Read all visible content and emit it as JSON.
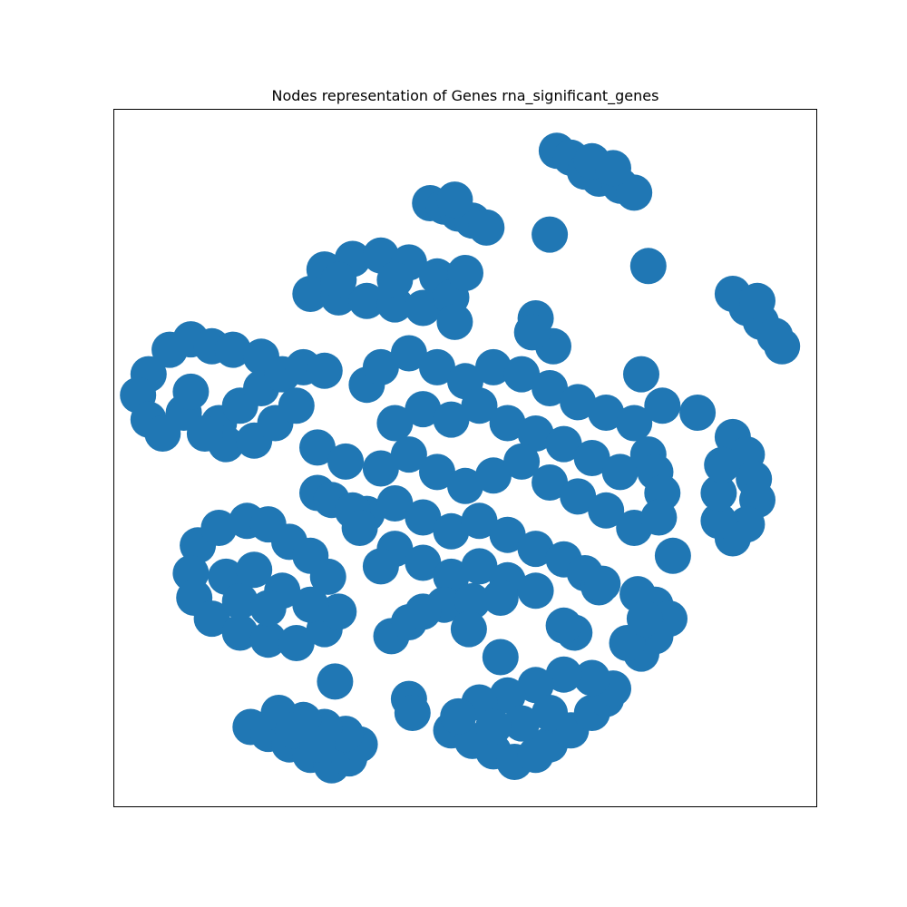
{
  "chart_data": {
    "type": "scatter",
    "title": "Nodes representation of Genes rna_significant_genes",
    "xlabel": "",
    "ylabel": "",
    "xlim": [
      0,
      100
    ],
    "ylim": [
      0,
      100
    ],
    "grid": false,
    "axes_ticks": false,
    "series": [
      {
        "color": "#2077b4",
        "points": [
          [
            63.0,
            94.0
          ],
          [
            65.0,
            93.0
          ],
          [
            67.0,
            91.0
          ],
          [
            69.0,
            90.0
          ],
          [
            72.0,
            89.0
          ],
          [
            74.0,
            88.0
          ],
          [
            68.0,
            92.5
          ],
          [
            71.0,
            91.5
          ],
          [
            45.0,
            86.5
          ],
          [
            47.0,
            86.0
          ],
          [
            49.0,
            85.0
          ],
          [
            51.0,
            84.0
          ],
          [
            53.0,
            83.0
          ],
          [
            48.5,
            87.0
          ],
          [
            62.0,
            82.0
          ],
          [
            76.0,
            77.5
          ],
          [
            88.0,
            73.5
          ],
          [
            90.0,
            71.5
          ],
          [
            92.0,
            69.5
          ],
          [
            94.0,
            67.5
          ],
          [
            95.0,
            66.0
          ],
          [
            91.5,
            72.5
          ],
          [
            30.0,
            77.0
          ],
          [
            34.0,
            78.5
          ],
          [
            38.0,
            79.0
          ],
          [
            42.0,
            78.0
          ],
          [
            46.0,
            76.0
          ],
          [
            28.0,
            73.5
          ],
          [
            32.0,
            73.0
          ],
          [
            36.0,
            72.5
          ],
          [
            40.0,
            72.0
          ],
          [
            44.0,
            71.5
          ],
          [
            48.0,
            73.0
          ],
          [
            32.0,
            75.5
          ],
          [
            40.0,
            75.5
          ],
          [
            50.0,
            76.5
          ],
          [
            48.5,
            69.5
          ],
          [
            5.0,
            62.0
          ],
          [
            8.0,
            65.5
          ],
          [
            11.0,
            67.0
          ],
          [
            14.0,
            66.0
          ],
          [
            17.0,
            65.5
          ],
          [
            21.0,
            64.5
          ],
          [
            3.5,
            59.0
          ],
          [
            5.0,
            55.5
          ],
          [
            7.0,
            53.5
          ],
          [
            10.0,
            56.5
          ],
          [
            11.0,
            59.5
          ],
          [
            15.0,
            55.0
          ],
          [
            18.0,
            57.5
          ],
          [
            21.0,
            60.0
          ],
          [
            24.0,
            62.0
          ],
          [
            27.0,
            63.0
          ],
          [
            30.0,
            62.5
          ],
          [
            16.0,
            52.0
          ],
          [
            20.0,
            52.5
          ],
          [
            23.0,
            55.0
          ],
          [
            26.0,
            57.5
          ],
          [
            13.0,
            53.5
          ],
          [
            75.0,
            62.0
          ],
          [
            83.0,
            56.5
          ],
          [
            88.0,
            53.0
          ],
          [
            90.0,
            50.5
          ],
          [
            91.0,
            47.0
          ],
          [
            91.5,
            44.0
          ],
          [
            90.0,
            40.5
          ],
          [
            88.0,
            38.5
          ],
          [
            86.0,
            41.0
          ],
          [
            86.0,
            45.0
          ],
          [
            86.5,
            49.0
          ],
          [
            60.0,
            70.0
          ],
          [
            62.5,
            66.0
          ],
          [
            59.5,
            68.0
          ],
          [
            36.0,
            60.5
          ],
          [
            38.0,
            63.0
          ],
          [
            42.0,
            65.0
          ],
          [
            46.0,
            63.0
          ],
          [
            50.0,
            61.0
          ],
          [
            54.0,
            63.0
          ],
          [
            58.0,
            62.0
          ],
          [
            62.0,
            60.0
          ],
          [
            66.0,
            58.0
          ],
          [
            70.0,
            56.5
          ],
          [
            74.0,
            55.0
          ],
          [
            78.0,
            57.5
          ],
          [
            40.0,
            55.0
          ],
          [
            44.0,
            57.0
          ],
          [
            48.0,
            55.5
          ],
          [
            52.0,
            57.5
          ],
          [
            56.0,
            55.0
          ],
          [
            60.0,
            53.5
          ],
          [
            64.0,
            52.0
          ],
          [
            68.0,
            50.0
          ],
          [
            72.0,
            48.0
          ],
          [
            76.0,
            50.5
          ],
          [
            38.0,
            48.5
          ],
          [
            42.0,
            50.5
          ],
          [
            46.0,
            48.0
          ],
          [
            50.0,
            46.0
          ],
          [
            54.0,
            47.5
          ],
          [
            58.0,
            49.5
          ],
          [
            62.0,
            46.5
          ],
          [
            66.0,
            44.5
          ],
          [
            70.0,
            42.5
          ],
          [
            74.0,
            40.0
          ],
          [
            36.0,
            42.0
          ],
          [
            40.0,
            43.5
          ],
          [
            44.0,
            41.5
          ],
          [
            48.0,
            39.5
          ],
          [
            52.0,
            41.0
          ],
          [
            56.0,
            39.0
          ],
          [
            60.0,
            37.0
          ],
          [
            64.0,
            35.5
          ],
          [
            67.0,
            33.5
          ],
          [
            40.0,
            37.0
          ],
          [
            44.0,
            35.0
          ],
          [
            48.0,
            33.0
          ],
          [
            52.0,
            34.5
          ],
          [
            56.0,
            32.5
          ],
          [
            60.0,
            31.0
          ],
          [
            47.0,
            29.0
          ],
          [
            51.0,
            29.5
          ],
          [
            55.0,
            30.0
          ],
          [
            29.0,
            51.5
          ],
          [
            33.0,
            49.5
          ],
          [
            29.0,
            45.0
          ],
          [
            31.0,
            44.0
          ],
          [
            34.0,
            42.5
          ],
          [
            38.0,
            34.5
          ],
          [
            35.0,
            40.0
          ],
          [
            77.0,
            48.0
          ],
          [
            78.0,
            45.0
          ],
          [
            77.5,
            41.5
          ],
          [
            79.5,
            36.0
          ],
          [
            12.0,
            37.5
          ],
          [
            15.0,
            40.0
          ],
          [
            19.0,
            41.0
          ],
          [
            22.0,
            40.5
          ],
          [
            25.0,
            38.0
          ],
          [
            28.0,
            36.0
          ],
          [
            30.5,
            33.0
          ],
          [
            11.0,
            33.5
          ],
          [
            11.5,
            30.0
          ],
          [
            14.0,
            27.0
          ],
          [
            18.0,
            25.0
          ],
          [
            22.0,
            24.0
          ],
          [
            26.0,
            23.5
          ],
          [
            30.0,
            25.5
          ],
          [
            32.0,
            28.0
          ],
          [
            16.0,
            33.0
          ],
          [
            20.0,
            34.0
          ],
          [
            24.0,
            31.0
          ],
          [
            28.0,
            29.0
          ],
          [
            18.0,
            29.5
          ],
          [
            22.0,
            28.5
          ],
          [
            74.5,
            30.5
          ],
          [
            77.0,
            29.0
          ],
          [
            79.0,
            27.0
          ],
          [
            77.0,
            24.5
          ],
          [
            75.0,
            22.0
          ],
          [
            73.0,
            23.5
          ],
          [
            75.5,
            27.0
          ],
          [
            39.5,
            24.5
          ],
          [
            42.0,
            26.5
          ],
          [
            44.0,
            28.0
          ],
          [
            50.5,
            25.5
          ],
          [
            55.0,
            21.5
          ],
          [
            65.5,
            25.0
          ],
          [
            64.0,
            26.0
          ],
          [
            69.0,
            31.5
          ],
          [
            69.5,
            32.0
          ],
          [
            31.5,
            18.0
          ],
          [
            42.0,
            15.5
          ],
          [
            42.5,
            13.5
          ],
          [
            48.0,
            11.0
          ],
          [
            51.0,
            9.5
          ],
          [
            54.0,
            8.0
          ],
          [
            57.0,
            6.5
          ],
          [
            60.0,
            7.5
          ],
          [
            62.0,
            9.0
          ],
          [
            65.0,
            11.0
          ],
          [
            68.0,
            13.5
          ],
          [
            70.0,
            15.5
          ],
          [
            71.0,
            17.0
          ],
          [
            68.0,
            18.5
          ],
          [
            64.0,
            19.0
          ],
          [
            60.0,
            17.5
          ],
          [
            56.0,
            16.0
          ],
          [
            52.0,
            15.0
          ],
          [
            49.0,
            13.0
          ],
          [
            58.0,
            12.0
          ],
          [
            62.0,
            13.5
          ],
          [
            54.0,
            11.5
          ],
          [
            19.5,
            11.5
          ],
          [
            22.0,
            10.5
          ],
          [
            25.0,
            9.0
          ],
          [
            28.0,
            7.5
          ],
          [
            31.0,
            6.0
          ],
          [
            33.5,
            7.0
          ],
          [
            35.0,
            9.0
          ],
          [
            33.0,
            10.5
          ],
          [
            30.0,
            11.5
          ],
          [
            27.0,
            12.5
          ],
          [
            23.5,
            13.5
          ],
          [
            25.5,
            11.0
          ],
          [
            29.0,
            9.0
          ]
        ]
      }
    ]
  }
}
